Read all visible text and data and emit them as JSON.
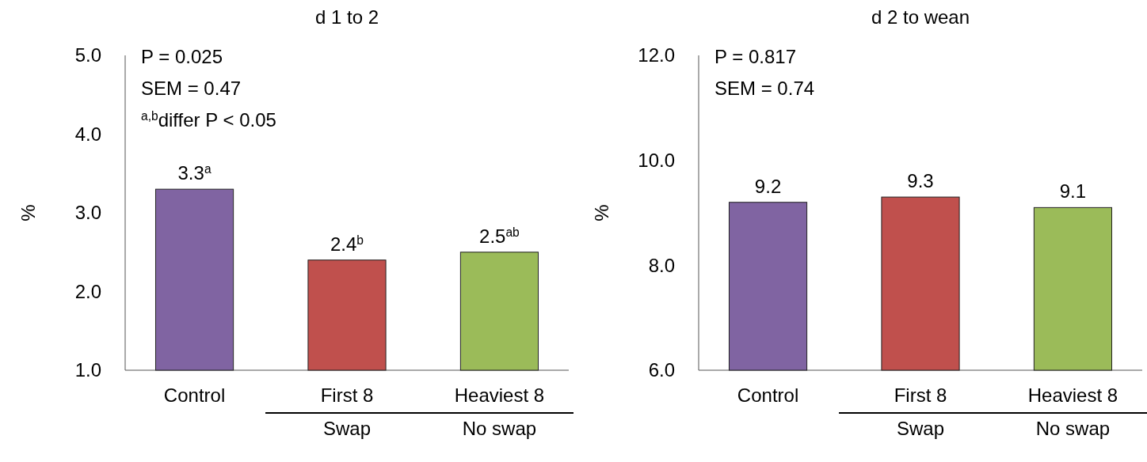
{
  "chart_data": [
    {
      "type": "bar",
      "title": "d 1 to 2",
      "ylabel": "%",
      "categories": [
        "Control",
        "First 8",
        "Heaviest 8"
      ],
      "values": [
        3.3,
        2.4,
        2.5
      ],
      "colors": [
        "#8064a2",
        "#c0504d",
        "#9bbb59"
      ],
      "value_labels": [
        "3.3$^{a}$",
        "2.4$^{b}$",
        "2.5$^{ab}$"
      ],
      "ylim": [
        1,
        5
      ],
      "yticks": [
        {
          "value": 1,
          "label": "1.0"
        },
        {
          "value": 2,
          "label": "2.0"
        },
        {
          "value": 3,
          "label": "3.0"
        },
        {
          "value": 4,
          "label": "4.0"
        },
        {
          "value": 5,
          "label": "5.0"
        }
      ],
      "annotations": [
        "P = 0.025",
        "SEM = 0.47",
        "$^{a,b}$differ P < 0.05",
        "Swap",
        "No swap"
      ]
    },
    {
      "type": "bar",
      "title": "d 2 to wean",
      "ylabel": "%",
      "categories": [
        "Control",
        "First 8",
        "Heaviest 8"
      ],
      "values": [
        9.2,
        9.3,
        9.1
      ],
      "colors": [
        "#8064a2",
        "#c0504d",
        "#9bbb59"
      ],
      "data_labels": true,
      "ylim": [
        6,
        12
      ],
      "yticks": [
        {
          "value": 6,
          "label": "6.0"
        },
        {
          "value": 8,
          "label": "8.0"
        },
        {
          "value": 10,
          "label": "10.0"
        },
        {
          "value": 12,
          "label": "12.0"
        }
      ],
      "annotations": [
        "P = 0.817",
        "SEM = 0.74",
        "Swap",
        "No swap"
      ]
    }
  ]
}
